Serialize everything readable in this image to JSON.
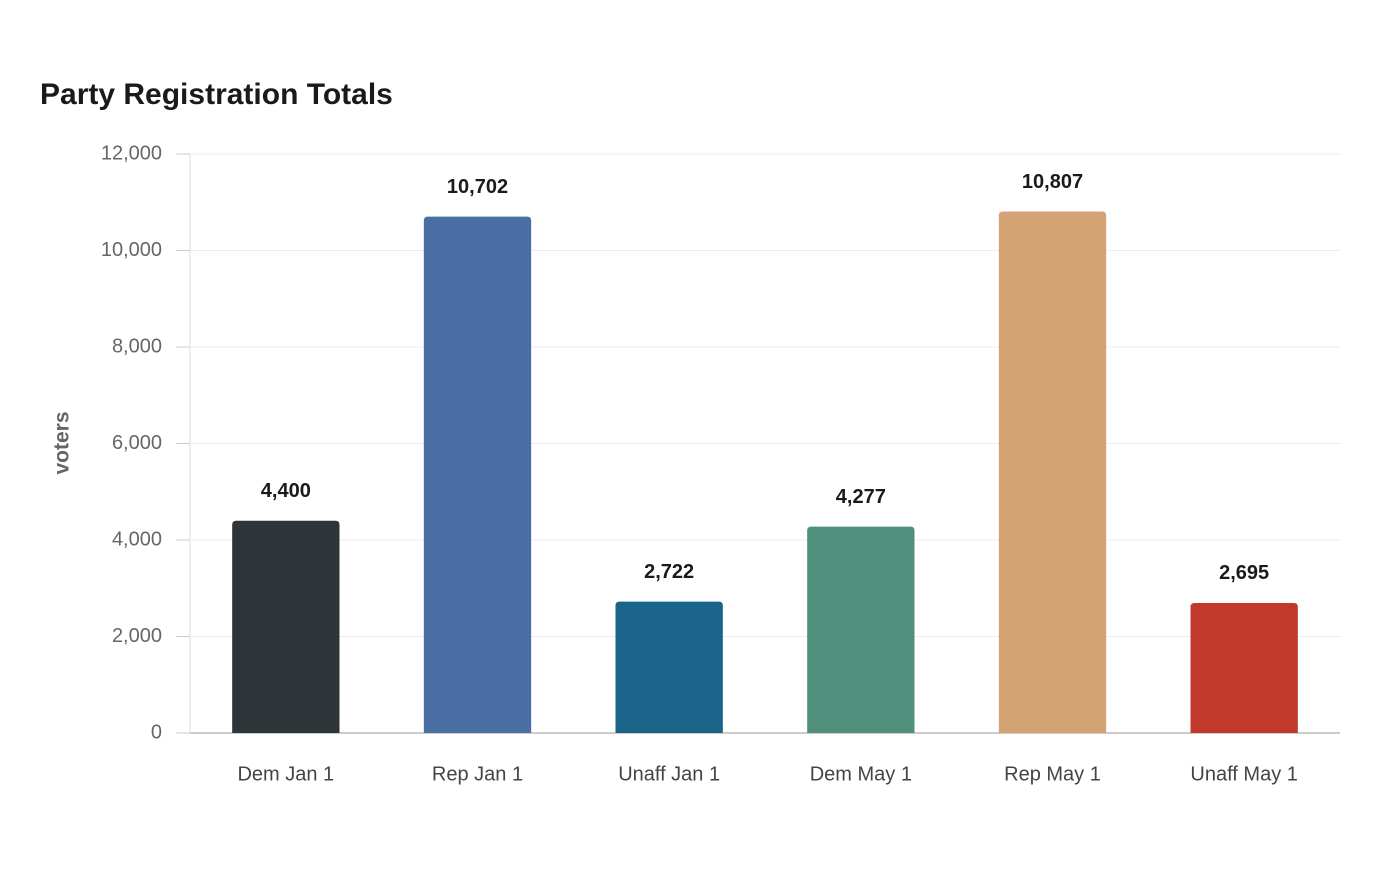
{
  "chart_data": {
    "type": "bar",
    "title": "Party Registration Totals",
    "y_label": "voters",
    "categories": [
      "Dem Jan 1",
      "Rep Jan 1",
      "Unaff Jan 1",
      "Dem May 1",
      "Rep May 1",
      "Unaff May 1"
    ],
    "values": [
      4400,
      10702,
      2722,
      4277,
      10807,
      2695
    ],
    "value_labels": [
      "4,400",
      "10,702",
      "2,722",
      "4,277",
      "10,807",
      "2,695"
    ],
    "colors": [
      "#2e3538",
      "#4a6fa5",
      "#1a6389",
      "#4f8f7b",
      "#d4a373",
      "#c0392b"
    ],
    "ylim": [
      0,
      12000
    ],
    "yticks": [
      0,
      {
        "value": 2000,
        "label": "2,000"
      },
      {
        "value": 4000,
        "label": "4,000"
      },
      {
        "value": 6000,
        "label": "6,000"
      },
      {
        "value": 8000,
        "label": "8,000"
      },
      {
        "value": 10000,
        "label": "10,000"
      },
      {
        "value": 12000,
        "label": "12,000"
      }
    ],
    "grid": true
  }
}
